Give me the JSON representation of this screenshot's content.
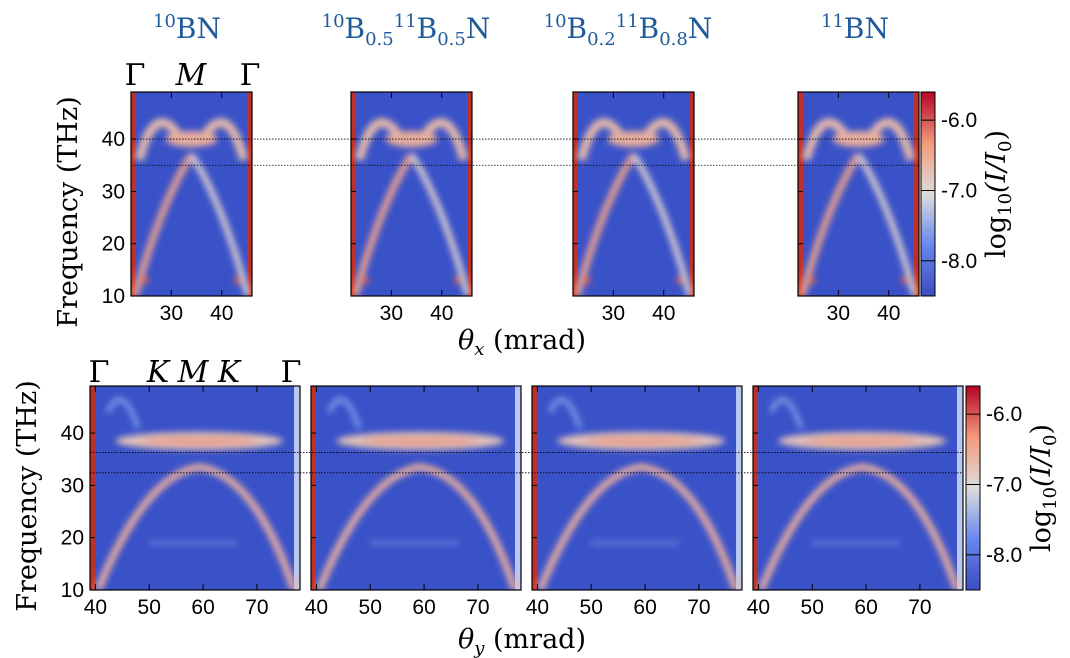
{
  "chart_data": [
    {
      "type": "heatmap",
      "row": "top",
      "panels": [
        {
          "title_iso_a": "10",
          "title_a": "BN",
          "title_iso_b": "",
          "title_b": ""
        },
        {
          "title_iso_a": "10",
          "title_a": "B",
          "title_sub_a": "0.5",
          "title_iso_b": "11",
          "title_b": "B",
          "title_sub_b": "0.5",
          "title_tail": "N"
        },
        {
          "title_iso_a": "10",
          "title_a": "B",
          "title_sub_a": "0.2",
          "title_iso_b": "11",
          "title_b": "B",
          "title_sub_b": "0.8",
          "title_tail": "N"
        },
        {
          "title_iso_a": "11",
          "title_a": "BN",
          "title_iso_b": "",
          "title_b": ""
        }
      ],
      "symmetry_points": [
        "Γ",
        "M",
        "Γ"
      ],
      "xlabel_symbol": "θ",
      "xlabel_sub": "x",
      "xlabel_unit": "(mrad)",
      "ylabel": "Frequency (THz)",
      "xlim": [
        22,
        46
      ],
      "xticks": [
        30,
        40
      ],
      "ylim": [
        10,
        49
      ],
      "yticks": [
        10,
        20,
        30,
        40
      ],
      "reference_lines_thz": [
        40,
        35
      ],
      "colorbar": {
        "label": "log",
        "label_sub": "10",
        "label_arg": "(I/I",
        "label_arg_sub": "0",
        "label_close": ")",
        "ticks": [
          "-6.0",
          "-7.0",
          "-8.0"
        ],
        "range": [
          -8.5,
          -5.6
        ]
      }
    },
    {
      "type": "heatmap",
      "row": "bottom",
      "panel_count": 4,
      "symmetry_points": [
        "Γ",
        "K",
        "M",
        "K",
        "Γ"
      ],
      "xlabel_symbol": "θ",
      "xlabel_sub": "y",
      "xlabel_unit": "(mrad)",
      "ylabel": "Frequency (THz)",
      "xlim": [
        39,
        78
      ],
      "xticks": [
        40,
        50,
        60,
        70
      ],
      "ylim": [
        10,
        49
      ],
      "yticks": [
        10,
        20,
        30,
        40
      ],
      "reference_lines_thz": [
        36.3,
        32.4
      ],
      "colorbar": {
        "label": "log",
        "label_sub": "10",
        "label_arg": "(I/I",
        "label_arg_sub": "0",
        "label_close": ")",
        "ticks": [
          "-6.0",
          "-7.0",
          "-8.0"
        ],
        "range": [
          -8.5,
          -5.6
        ]
      }
    }
  ],
  "colors": {
    "title": "#1f5a9a",
    "map_low": "#3b4cc0",
    "map_mid": "#dddddd",
    "map_high": "#b40426"
  }
}
